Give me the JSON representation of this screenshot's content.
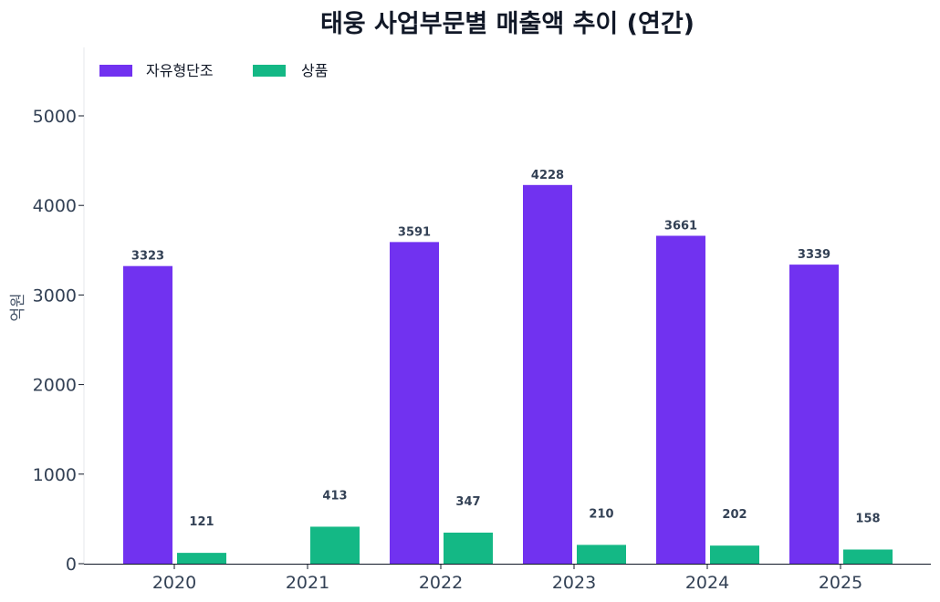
{
  "chart_data": {
    "type": "bar",
    "title": "태웅 사업부문별 매출액 추이 (연간)",
    "ylabel": "억원",
    "xlabel": "",
    "categories": [
      "2020",
      "2021",
      "2022",
      "2023",
      "2024",
      "2025"
    ],
    "series": [
      {
        "name": "자유형단조",
        "color": "#7132f0",
        "values": [
          3323,
          null,
          3591,
          4228,
          3661,
          3339
        ]
      },
      {
        "name": "상품",
        "color": "#14b885",
        "values": [
          121,
          413,
          347,
          210,
          202,
          158
        ]
      }
    ],
    "ylim": [
      0,
      5750
    ],
    "yticks": [
      0,
      1000,
      2000,
      3000,
      4000,
      5000
    ],
    "grid": false,
    "legend": "top-left"
  }
}
